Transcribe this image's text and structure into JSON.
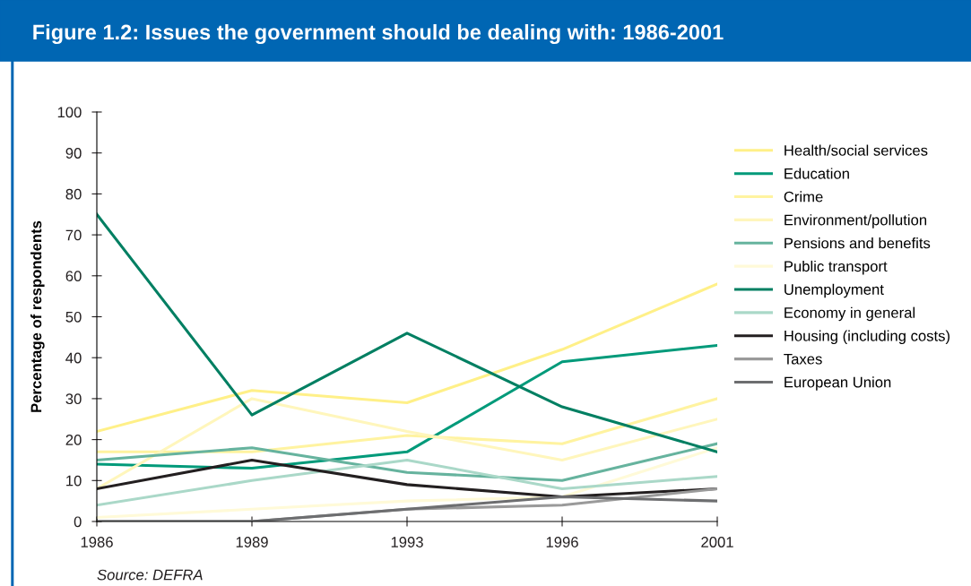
{
  "chart_data": {
    "type": "line",
    "title": "Figure 1.2: Issues the government should be dealing with: 1986-2001",
    "ylabel": "Percentage of respondents",
    "categories": [
      "1986",
      "1989",
      "1993",
      "1996",
      "2001"
    ],
    "ylim": [
      0,
      100
    ],
    "yticks": [
      0,
      10,
      20,
      30,
      40,
      50,
      60,
      70,
      80,
      90,
      100
    ],
    "grid": false,
    "legend": "right",
    "marker": "none",
    "line_style": "solid",
    "annotations": [
      "Source: DEFRA"
    ],
    "series": [
      {
        "name": "Health/social services",
        "color": "#fff088",
        "values": [
          22,
          32,
          29,
          42,
          58
        ]
      },
      {
        "name": "Education",
        "color": "#009a7a",
        "values": [
          14,
          13,
          17,
          39,
          43
        ]
      },
      {
        "name": "Crime",
        "color": "#fff3a0",
        "values": [
          17,
          17,
          21,
          19,
          30
        ]
      },
      {
        "name": "Environment/pollution",
        "color": "#fff6bc",
        "values": [
          8,
          30,
          22,
          15,
          25
        ]
      },
      {
        "name": "Pensions and benefits",
        "color": "#66b39e",
        "values": [
          15,
          18,
          12,
          10,
          19
        ]
      },
      {
        "name": "Public transport",
        "color": "#fffad8",
        "values": [
          1,
          3,
          5,
          6,
          18
        ]
      },
      {
        "name": "Unemployment",
        "color": "#007f62",
        "values": [
          75,
          26,
          46,
          28,
          17
        ]
      },
      {
        "name": "Economy in general",
        "color": "#aad8c8",
        "values": [
          4,
          10,
          15,
          8,
          11
        ]
      },
      {
        "name": "Housing (including costs)",
        "color": "#231f20",
        "values": [
          8,
          15,
          9,
          6,
          8
        ]
      },
      {
        "name": "Taxes",
        "color": "#9a9a9a",
        "values": [
          0,
          0,
          3,
          4,
          8
        ]
      },
      {
        "name": "European Union",
        "color": "#6d6e70",
        "values": [
          0,
          0,
          3,
          6,
          5
        ]
      }
    ]
  }
}
